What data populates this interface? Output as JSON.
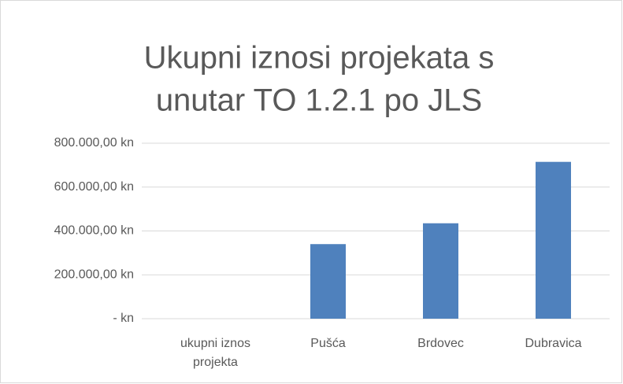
{
  "chart_data": {
    "type": "bar",
    "title": [
      "Ukupni iznosi projekata s",
      "unutar TO 1.2.1 po JLS"
    ],
    "categories": [
      "ukupni iznos projekta",
      "Pušća",
      "Brdovec",
      "Dubravica"
    ],
    "values": [
      0,
      340000,
      435000,
      715000
    ],
    "color": "#4f81bd",
    "ylim": [
      0,
      800000
    ],
    "yticks": [
      {
        "value": 0,
        "label": "-   kn"
      },
      {
        "value": 200000,
        "label": "200.000,00 kn"
      },
      {
        "value": 400000,
        "label": "400.000,00 kn"
      },
      {
        "value": 600000,
        "label": "600.000,00 kn"
      },
      {
        "value": 800000,
        "label": "800.000,00 kn"
      }
    ],
    "grid": true
  }
}
